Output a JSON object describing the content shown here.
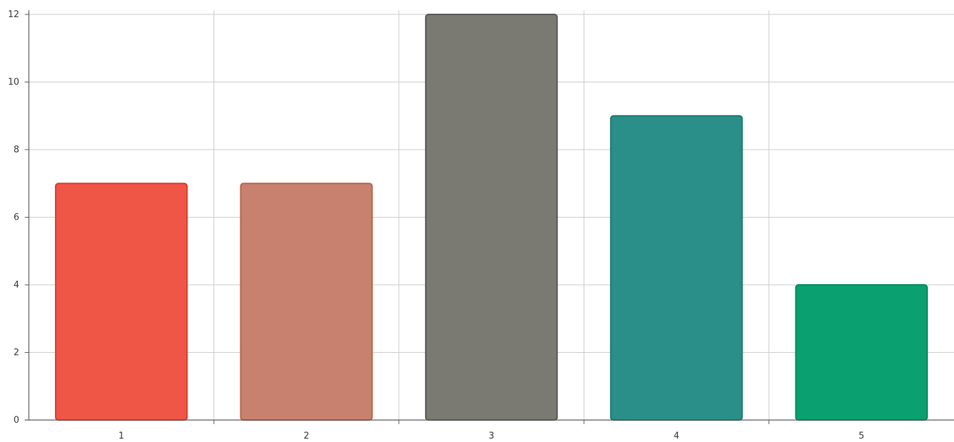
{
  "chart_data": {
    "type": "bar",
    "categories": [
      "1",
      "2",
      "3",
      "4",
      "5"
    ],
    "values": [
      7,
      7,
      12,
      9,
      4
    ],
    "colors": [
      "#ef5646",
      "#c8816f",
      "#7a7a72",
      "#2a8f88",
      "#0aa06f"
    ],
    "edge_colors": [
      "#d63a2c",
      "#b8624a",
      "#555555",
      "#19776a",
      "#068a5a"
    ],
    "ylim": [
      0,
      12
    ],
    "yticks": [
      "0",
      "2",
      "4",
      "6",
      "8",
      "10",
      "12"
    ],
    "grid": true,
    "title": "",
    "xlabel": "",
    "ylabel": ""
  }
}
